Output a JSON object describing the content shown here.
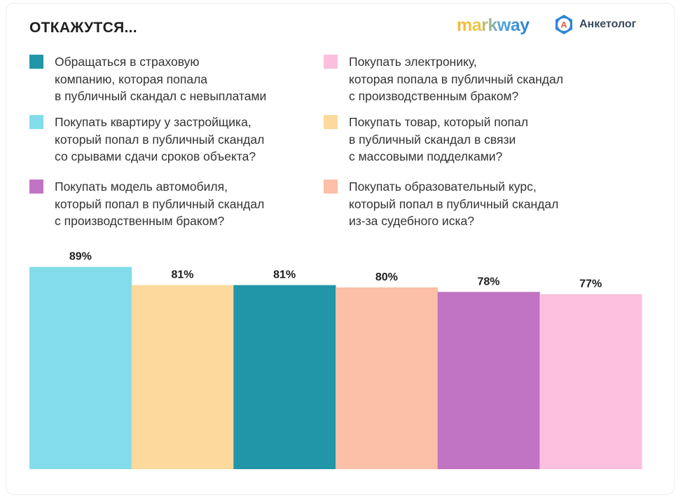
{
  "header": {
    "title": "ОТКАЖУТСЯ...",
    "logos": [
      {
        "text": "markway",
        "icon": "markway-logo"
      },
      {
        "text": "Анкетолог",
        "icon": "anketolog-logo-icon",
        "icon_letter": "A"
      }
    ]
  },
  "legend": {
    "items": [
      {
        "label": "Обращаться в страховую\nкомпанию, которая попала\nв публичный скандал с невыплатами",
        "color": "#2196a8"
      },
      {
        "label": "Покупать квартиру у застройщика,\nкоторый попал в публичный скандал\nсо срывами сдачи сроков объекта?",
        "color": "#82dcea"
      },
      {
        "label": "Покупать модель автомобиля,\nкоторый попал в публичный скандал\nс производственным браком?",
        "color": "#c173c4"
      },
      {
        "label": "Покупать электронику,\nкоторая попала в публичный скандал\nс производственным браком?",
        "color": "#fcbfdd"
      },
      {
        "label": "Покупать товар, который попал\nв публичный скандал в связи\nс массовыми подделками?",
        "color": "#fcd99c"
      },
      {
        "label": "Покупать образовательный курс,\nкоторый попал в публичный скандал\nиз-за судебного иска?",
        "color": "#fcbfa8"
      }
    ]
  },
  "chart_data": {
    "type": "bar",
    "title": "ОТКАЖУТСЯ...",
    "xlabel": "",
    "ylabel": "",
    "grid": false,
    "legend_position": "top",
    "categories": [
      "Покупать квартиру у застройщика",
      "Покупать товар с массовыми подделками",
      "Обращаться в страховую компанию",
      "Покупать образовательный курс",
      "Покупать модель автомобиля",
      "Покупать электронику"
    ],
    "values": [
      89,
      81,
      81,
      80,
      78,
      77
    ],
    "value_labels": [
      "89%",
      "81%",
      "81%",
      "80%",
      "78%",
      "77%"
    ],
    "colors": [
      "#82dcea",
      "#fcd99c",
      "#2196a8",
      "#fcbfa8",
      "#c173c4",
      "#fcbfdd"
    ],
    "unit": "%",
    "ylim": [
      0,
      100
    ]
  }
}
